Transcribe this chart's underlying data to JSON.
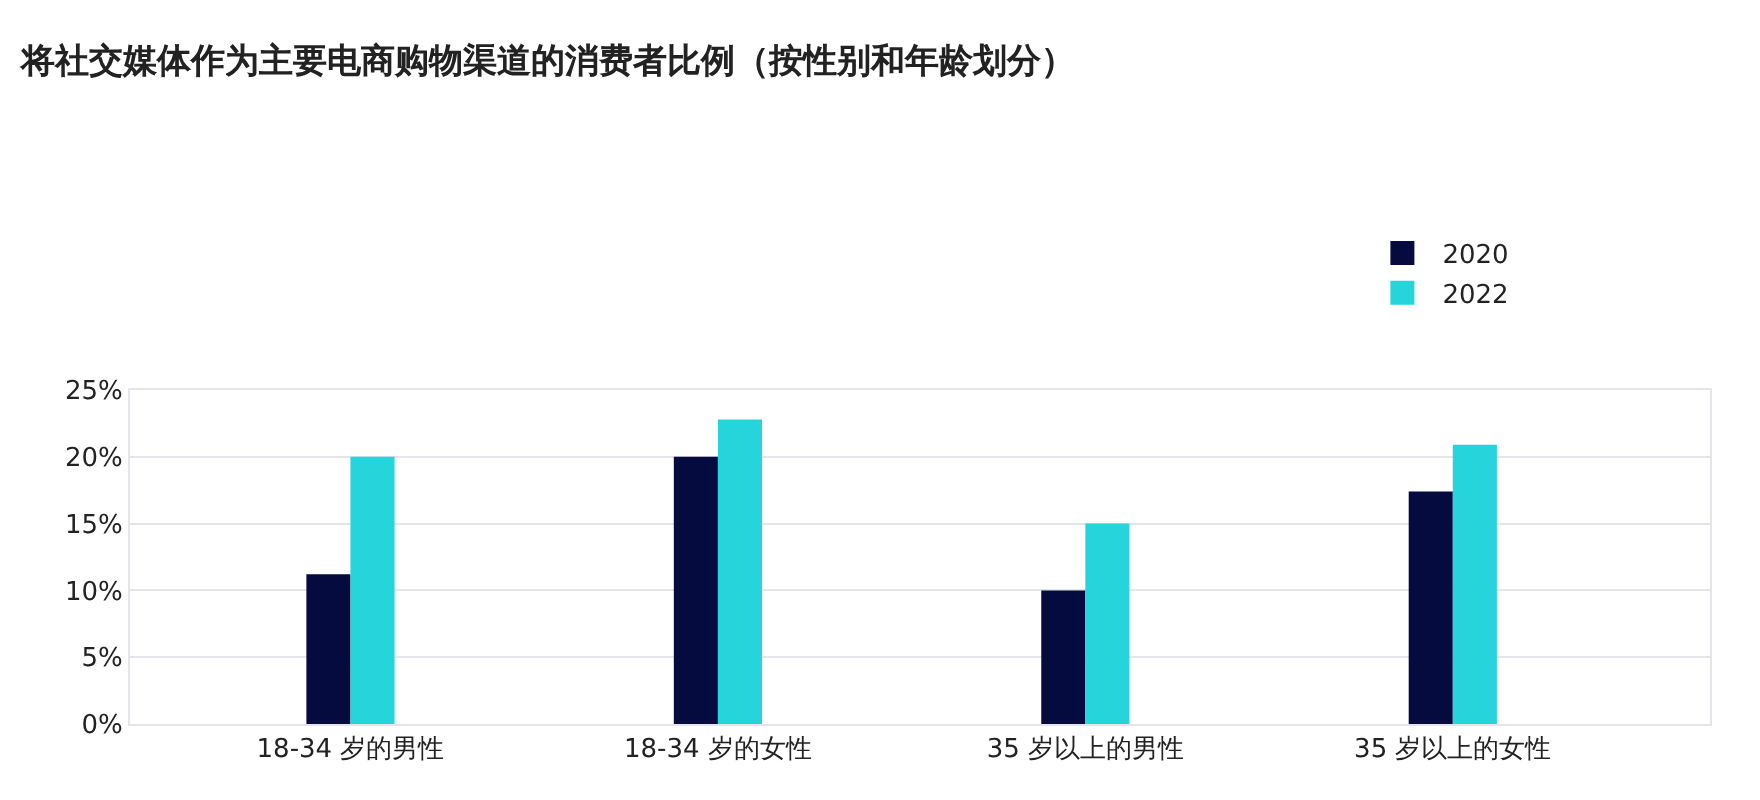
{
  "chart_data": {
    "type": "bar",
    "title": "将社交媒体作为主要电商购物渠道的消费者比例（按性别和年龄划分）",
    "categories": [
      "18-34 岁的男性",
      "18-34 岁的女性",
      "35 岁以上的男性",
      "35 岁以上的女性"
    ],
    "series": [
      {
        "name": "2020",
        "color": "#050a3f",
        "values": [
          11.2,
          20.0,
          10.0,
          17.4
        ]
      },
      {
        "name": "2022",
        "color": "#26d4dc",
        "values": [
          20.0,
          22.8,
          15.0,
          20.9
        ]
      }
    ],
    "ylim": [
      0,
      25
    ],
    "yticks": [
      {
        "value": 0,
        "label": "0%"
      },
      {
        "value": 5,
        "label": "5%"
      },
      {
        "value": 10,
        "label": "10%"
      },
      {
        "value": 15,
        "label": "15%"
      },
      {
        "value": 20,
        "label": "20%"
      },
      {
        "value": 25,
        "label": "25%"
      }
    ],
    "grid": "y",
    "legend": "top right"
  }
}
